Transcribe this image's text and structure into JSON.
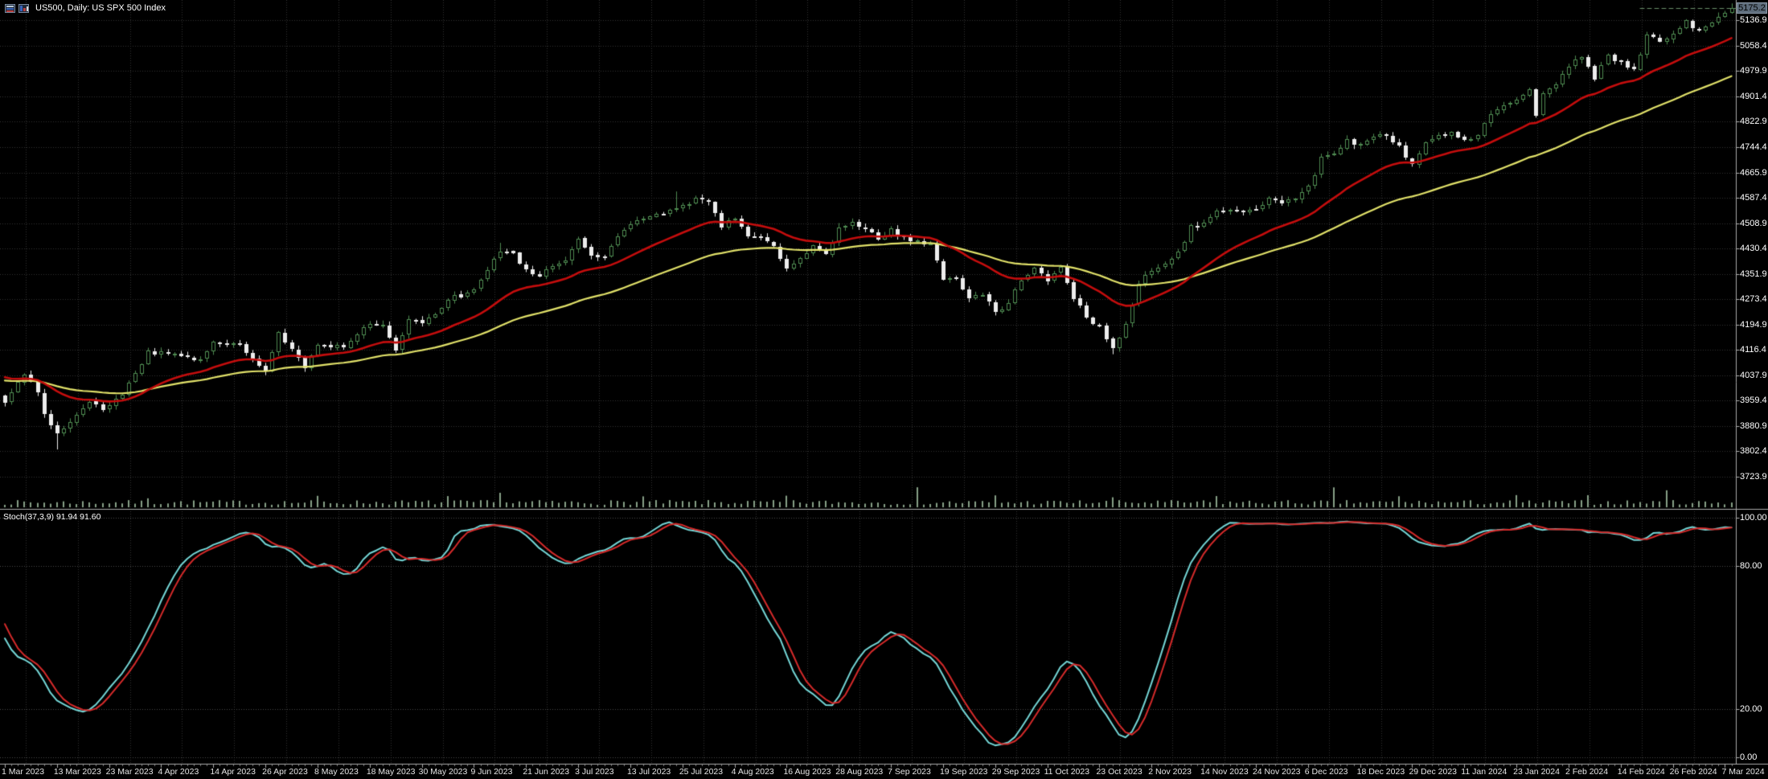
{
  "window": {
    "title": "US500, Daily:  US SPX 500 Index"
  },
  "colors": {
    "background": "#000000",
    "grid": "#333333",
    "panel_border": "#ABABAB",
    "text": "#FFFFFF",
    "time_text": "#E4E4E4",
    "candle_up": "#4E8A50",
    "candle_down": "#EDEDED",
    "ma_fast": "#C40D0D",
    "ma_slow": "#E2E26A",
    "volume": "#87A087",
    "stoch_main": "#74D6D6",
    "stoch_signal": "#D52A2A",
    "price_box_bg": "#5D6C7B",
    "price_box_text": "#000000",
    "last_price_line": "#6A8F6A",
    "level_line": "#4A4A4A"
  },
  "chart_data": {
    "type": "candlestick",
    "symbol": "US500",
    "timeframe": "Daily",
    "description": "US SPX 500 Index",
    "x_axis": {
      "bars_total": 266,
      "bars_per_label": 8,
      "tick_labels": [
        "1 Mar 2023",
        "13 Mar 2023",
        "23 Mar 2023",
        "4 Apr 2023",
        "14 Apr 2023",
        "26 Apr 2023",
        "8 May 2023",
        "18 May 2023",
        "30 May 2023",
        "9 Jun 2023",
        "21 Jun 2023",
        "3 Jul 2023",
        "13 Jul 2023",
        "25 Jul 2023",
        "4 Aug 2023",
        "16 Aug 2023",
        "28 Aug 2023",
        "7 Sep 2023",
        "19 Sep 2023",
        "29 Sep 2023",
        "11 Oct 2023",
        "23 Oct 2023",
        "2 Nov 2023",
        "14 Nov 2023",
        "24 Nov 2023",
        "6 Dec 2023",
        "18 Dec 2023",
        "29 Dec 2023",
        "11 Jan 2024",
        "23 Jan 2024",
        "2 Feb 2024",
        "14 Feb 2024",
        "26 Feb 2024",
        "7 Mar 2024"
      ]
    },
    "panels": [
      {
        "name": "price",
        "y_axis": {
          "current_price": "5175.2",
          "tick_labels": [
            "5136.9",
            "5058.4",
            "4979.9",
            "4901.4",
            "4822.9",
            "4744.4",
            "4665.9",
            "4587.4",
            "4508.9",
            "4430.4",
            "4351.9",
            "4273.4",
            "4194.9",
            "4116.4",
            "4037.9",
            "3959.4",
            "3880.9",
            "3802.4",
            "3723.9"
          ],
          "range": [
            3626,
            5200
          ]
        },
        "candles": {
          "count": 266,
          "pre_history_points": [
            [
              -66,
              4026
            ],
            [
              -62,
              4077
            ],
            [
              -58,
              3942
            ],
            [
              -54,
              4020
            ],
            [
              -50,
              3818
            ],
            [
              -47,
              3822
            ],
            [
              -42,
              3839
            ],
            [
              -41,
              3824
            ],
            [
              -39,
              3808
            ],
            [
              -36,
              3885
            ],
            [
              -33,
              3999
            ],
            [
              -28,
              3972
            ],
            [
              -24,
              4060
            ],
            [
              -19,
              4179
            ],
            [
              -16,
              4090
            ],
            [
              -11,
              4137
            ],
            [
              -9,
              4147
            ],
            [
              -6,
              3997
            ],
            [
              -4,
              3970
            ],
            [
              -2,
              3982
            ],
            [
              -1,
              3970
            ]
          ],
          "close_control_points": [
            [
              0,
              3951
            ],
            [
              3,
              4045
            ],
            [
              5,
              3986
            ],
            [
              6,
              3918
            ],
            [
              8,
              3855
            ],
            [
              10,
              3891
            ],
            [
              13,
              3951
            ],
            [
              15,
              3936
            ],
            [
              16,
              3948
            ],
            [
              18,
              3977
            ],
            [
              22,
              4109
            ],
            [
              26,
              4105
            ],
            [
              28,
              4090
            ],
            [
              30,
              4092
            ],
            [
              32,
              4137
            ],
            [
              36,
              4130
            ],
            [
              40,
              4055
            ],
            [
              42,
              4169
            ],
            [
              44,
              4119
            ],
            [
              46,
              4061
            ],
            [
              48,
              4138
            ],
            [
              52,
              4124
            ],
            [
              56,
              4198
            ],
            [
              58,
              4192
            ],
            [
              60,
              4115
            ],
            [
              62,
              4205
            ],
            [
              64,
              4205
            ],
            [
              66,
              4221
            ],
            [
              68,
              4274
            ],
            [
              72,
              4299
            ],
            [
              74,
              4369
            ],
            [
              76,
              4426
            ],
            [
              78,
              4410
            ],
            [
              80,
              4366
            ],
            [
              82,
              4348
            ],
            [
              84,
              4378
            ],
            [
              86,
              4396
            ],
            [
              88,
              4456
            ],
            [
              90,
              4412
            ],
            [
              92,
              4410
            ],
            [
              94,
              4472
            ],
            [
              96,
              4505
            ],
            [
              100,
              4535
            ],
            [
              104,
              4567
            ],
            [
              106,
              4582
            ],
            [
              108,
              4577
            ],
            [
              110,
              4502
            ],
            [
              112,
              4518
            ],
            [
              114,
              4468
            ],
            [
              116,
              4464
            ],
            [
              118,
              4438
            ],
            [
              120,
              4370
            ],
            [
              122,
              4400
            ],
            [
              124,
              4436
            ],
            [
              126,
              4406
            ],
            [
              128,
              4498
            ],
            [
              130,
              4508
            ],
            [
              132,
              4497
            ],
            [
              134,
              4451
            ],
            [
              136,
              4487
            ],
            [
              138,
              4467
            ],
            [
              140,
              4450
            ],
            [
              142,
              4444
            ],
            [
              144,
              4330
            ],
            [
              146,
              4337
            ],
            [
              148,
              4274
            ],
            [
              150,
              4288
            ],
            [
              152,
              4229
            ],
            [
              154,
              4258
            ],
            [
              156,
              4335
            ],
            [
              158,
              4377
            ],
            [
              160,
              4328
            ],
            [
              162,
              4373
            ],
            [
              164,
              4278
            ],
            [
              166,
              4217
            ],
            [
              168,
              4187
            ],
            [
              170,
              4117
            ],
            [
              172,
              4194
            ],
            [
              174,
              4318
            ],
            [
              176,
              4366
            ],
            [
              178,
              4383
            ],
            [
              180,
              4415
            ],
            [
              182,
              4496
            ],
            [
              184,
              4508
            ],
            [
              186,
              4547
            ],
            [
              188,
              4556
            ],
            [
              190,
              4550
            ],
            [
              192,
              4551
            ],
            [
              194,
              4594
            ],
            [
              196,
              4567
            ],
            [
              198,
              4586
            ],
            [
              200,
              4622
            ],
            [
              202,
              4707
            ],
            [
              204,
              4719
            ],
            [
              206,
              4768
            ],
            [
              208,
              4747
            ],
            [
              210,
              4775
            ],
            [
              212,
              4783
            ],
            [
              214,
              4743
            ],
            [
              216,
              4688
            ],
            [
              218,
              4764
            ],
            [
              220,
              4783
            ],
            [
              222,
              4784
            ],
            [
              224,
              4766
            ],
            [
              226,
              4781
            ],
            [
              228,
              4850
            ],
            [
              230,
              4869
            ],
            [
              232,
              4891
            ],
            [
              234,
              4925
            ],
            [
              235,
              4846
            ],
            [
              236,
              4906
            ],
            [
              238,
              4943
            ],
            [
              240,
              4995
            ],
            [
              242,
              5027
            ],
            [
              244,
              4953
            ],
            [
              246,
              5030
            ],
            [
              248,
              5006
            ],
            [
              250,
              4982
            ],
            [
              252,
              5089
            ],
            [
              254,
              5078
            ],
            [
              256,
              5096
            ],
            [
              258,
              5131
            ],
            [
              260,
              5105
            ],
            [
              262,
              5124
            ],
            [
              264,
              5160
            ],
            [
              265,
              5175.2
            ]
          ],
          "noise": {
            "seed": 42,
            "close_amp": 14,
            "gap_amp": 5,
            "wick_min": 2,
            "wick_amp": 11
          },
          "wick_overrides": [
            {
              "day": 8,
              "low": 3808
            },
            {
              "day": 76,
              "high": 4448
            },
            {
              "day": 103,
              "high": 4607
            },
            {
              "day": 170,
              "low": 4103
            },
            {
              "day": 265,
              "high": 5189.5
            }
          ]
        },
        "overlays": [
          {
            "name": "ma-fast",
            "method": "ema",
            "period": 21
          },
          {
            "name": "ma-slow",
            "method": "ema",
            "period": 50
          }
        ],
        "volume": {
          "seed": 7,
          "base_min": 3,
          "base_amp": 6,
          "medium_days": [
            22,
            48,
            68,
            98,
            120,
            152,
            170,
            186,
            214,
            232,
            243
          ],
          "medium_extra": 7,
          "spike_days": [
            76,
            140,
            204,
            255
          ],
          "spike_min": 18,
          "spike_amp": 7
        }
      },
      {
        "name": "stochastic",
        "label": "Stoch(37,3,9) 91.94 91.60",
        "k_period": 37,
        "d_period": 3,
        "slowing": 9,
        "current_main": 91.94,
        "current_signal": 91.6,
        "levels": [
          100,
          80,
          20,
          0
        ],
        "y_axis": {
          "tick_labels": [
            "100.00",
            "80.00",
            "20.00",
            "0.00"
          ]
        }
      }
    ]
  }
}
